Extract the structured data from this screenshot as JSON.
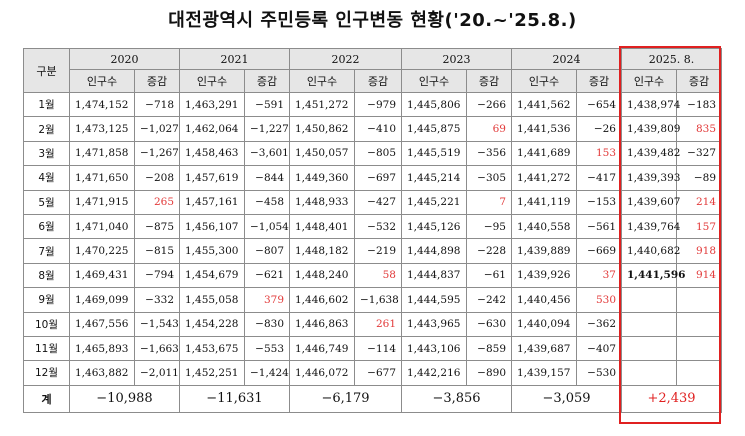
{
  "title": "대전광역시 주민등록 인구변동 현황('20.~'25.8.)",
  "header": {
    "corner": "구분",
    "years": [
      "2020",
      "2021",
      "2022",
      "2023",
      "2024",
      "2025. 8."
    ],
    "pop_label": "인구수",
    "chg_label": "증감"
  },
  "colors": {
    "positive": "#e23a3a",
    "highlight_border": "#e02020"
  },
  "rows": [
    {
      "month": "1월",
      "c": [
        [
          "1,474,152",
          "−718"
        ],
        [
          "1,463,291",
          "−591"
        ],
        [
          "1,451,272",
          "−979"
        ],
        [
          "1,445,806",
          "−266"
        ],
        [
          "1,441,562",
          "−654"
        ],
        [
          "1,438,974",
          "−183"
        ]
      ]
    },
    {
      "month": "2월",
      "c": [
        [
          "1,473,125",
          "−1,027"
        ],
        [
          "1,462,064",
          "−1,227"
        ],
        [
          "1,450,862",
          "−410"
        ],
        [
          "1,445,875",
          "69"
        ],
        [
          "1,441,536",
          "−26"
        ],
        [
          "1,439,809",
          "835"
        ]
      ]
    },
    {
      "month": "3월",
      "c": [
        [
          "1,471,858",
          "−1,267"
        ],
        [
          "1,458,463",
          "−3,601"
        ],
        [
          "1,450,057",
          "−805"
        ],
        [
          "1,445,519",
          "−356"
        ],
        [
          "1,441,689",
          "153"
        ],
        [
          "1,439,482",
          "−327"
        ]
      ]
    },
    {
      "month": "4월",
      "c": [
        [
          "1,471,650",
          "−208"
        ],
        [
          "1,457,619",
          "−844"
        ],
        [
          "1,449,360",
          "−697"
        ],
        [
          "1,445,214",
          "−305"
        ],
        [
          "1,441,272",
          "−417"
        ],
        [
          "1,439,393",
          "−89"
        ]
      ]
    },
    {
      "month": "5월",
      "c": [
        [
          "1,471,915",
          "265"
        ],
        [
          "1,457,161",
          "−458"
        ],
        [
          "1,448,933",
          "−427"
        ],
        [
          "1,445,221",
          "7"
        ],
        [
          "1,441,119",
          "−153"
        ],
        [
          "1,439,607",
          "214"
        ]
      ]
    },
    {
      "month": "6월",
      "c": [
        [
          "1,471,040",
          "−875"
        ],
        [
          "1,456,107",
          "−1,054"
        ],
        [
          "1,448,401",
          "−532"
        ],
        [
          "1,445,126",
          "−95"
        ],
        [
          "1,440,558",
          "−561"
        ],
        [
          "1,439,764",
          "157"
        ]
      ]
    },
    {
      "month": "7월",
      "c": [
        [
          "1,470,225",
          "−815"
        ],
        [
          "1,455,300",
          "−807"
        ],
        [
          "1,448,182",
          "−219"
        ],
        [
          "1,444,898",
          "−228"
        ],
        [
          "1,439,889",
          "−669"
        ],
        [
          "1,440,682",
          "918"
        ]
      ]
    },
    {
      "month": "8월",
      "c": [
        [
          "1,469,431",
          "−794"
        ],
        [
          "1,454,679",
          "−621"
        ],
        [
          "1,448,240",
          "58"
        ],
        [
          "1,444,837",
          "−61"
        ],
        [
          "1,439,926",
          "37"
        ],
        [
          "1,441,596",
          "914"
        ]
      ]
    },
    {
      "month": "9월",
      "c": [
        [
          "1,469,099",
          "−332"
        ],
        [
          "1,455,058",
          "379"
        ],
        [
          "1,446,602",
          "−1,638"
        ],
        [
          "1,444,595",
          "−242"
        ],
        [
          "1,440,456",
          "530"
        ],
        [
          "",
          ""
        ]
      ]
    },
    {
      "month": "10월",
      "c": [
        [
          "1,467,556",
          "−1,543"
        ],
        [
          "1,454,228",
          "−830"
        ],
        [
          "1,446,863",
          "261"
        ],
        [
          "1,443,965",
          "−630"
        ],
        [
          "1,440,094",
          "−362"
        ],
        [
          "",
          ""
        ]
      ]
    },
    {
      "month": "11월",
      "c": [
        [
          "1,465,893",
          "−1,663"
        ],
        [
          "1,453,675",
          "−553"
        ],
        [
          "1,446,749",
          "−114"
        ],
        [
          "1,443,106",
          "−859"
        ],
        [
          "1,439,687",
          "−407"
        ],
        [
          "",
          ""
        ]
      ]
    },
    {
      "month": "12월",
      "c": [
        [
          "1,463,882",
          "−2,011"
        ],
        [
          "1,452,251",
          "−1,424"
        ],
        [
          "1,446,072",
          "−677"
        ],
        [
          "1,442,216",
          "−890"
        ],
        [
          "1,439,157",
          "−530"
        ],
        [
          "",
          ""
        ]
      ]
    }
  ],
  "total": {
    "label": "계",
    "values": [
      "−10,988",
      "−11,631",
      "−6,179",
      "−3,856",
      "−3,059",
      "+2,439"
    ]
  }
}
